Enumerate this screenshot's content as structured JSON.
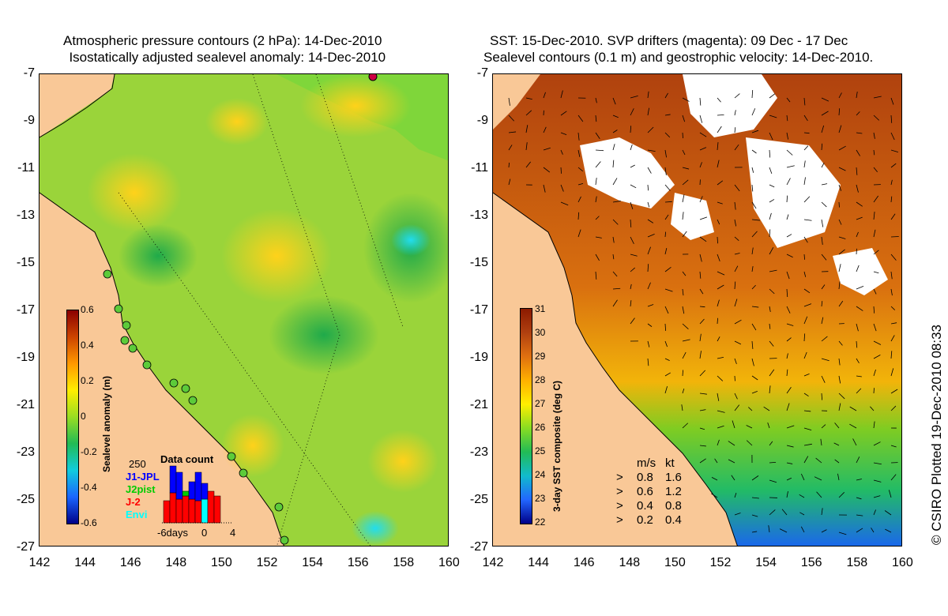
{
  "left_panel": {
    "title_line1": "Atmospheric pressure contours (2 hPa): 14-Dec-2010",
    "title_line2": "  Isostatically adjusted sealevel anomaly: 14-Dec-2010",
    "colorbar": {
      "label": "Sealevel anomaly (m)",
      "ticks": [
        "0.6",
        "0.4",
        "0.2",
        "0",
        "-0.2",
        "-0.4",
        "-0.6"
      ]
    },
    "data_count": {
      "title": "Data count",
      "max_label": "250",
      "missions": [
        {
          "name": "J1-JPL",
          "color": "#0000ff"
        },
        {
          "name": "J2pist",
          "color": "#00cc00"
        },
        {
          "name": "J-2",
          "color": "#ff0000"
        },
        {
          "name": "Envi",
          "color": "#00ffff"
        }
      ],
      "x_labels": [
        "-6days",
        "0",
        "4"
      ]
    }
  },
  "right_panel": {
    "title_line1": "SST: 15-Dec-2010. SVP drifters (magenta): 09 Dec - 17 Dec",
    "title_line2": "Sealevel contours (0.1 m) and geostrophic velocity: 14-Dec-2010.",
    "colorbar": {
      "label": "3-day SST composite (deg C)",
      "ticks": [
        "31",
        "30",
        "29",
        "28",
        "27",
        "26",
        "25",
        "24",
        "23",
        "22"
      ]
    },
    "velocity_legend": {
      "header_ms": "m/s",
      "header_kt": "kt",
      "rows": [
        {
          "ms": "0.8",
          "kt": "1.6"
        },
        {
          "ms": "0.6",
          "kt": "1.2"
        },
        {
          "ms": "0.4",
          "kt": "0.8"
        },
        {
          "ms": "0.2",
          "kt": "0.4"
        }
      ]
    }
  },
  "axes": {
    "lat_labels": [
      "-7",
      "-9",
      "-11",
      "-13",
      "-15",
      "-17",
      "-19",
      "-21",
      "-23",
      "-25",
      "-27"
    ],
    "lon_labels": [
      "142",
      "144",
      "146",
      "148",
      "150",
      "152",
      "154",
      "156",
      "158",
      "160"
    ]
  },
  "credit": "© CSIRO Plotted 19-Dec-2010 08:33",
  "colors": {
    "land": "#f9c897",
    "sla_positive": "#ffcc00",
    "sla_zero": "#33bb33",
    "sst_hot": "#a0300c",
    "cloud": "#ffffff"
  }
}
